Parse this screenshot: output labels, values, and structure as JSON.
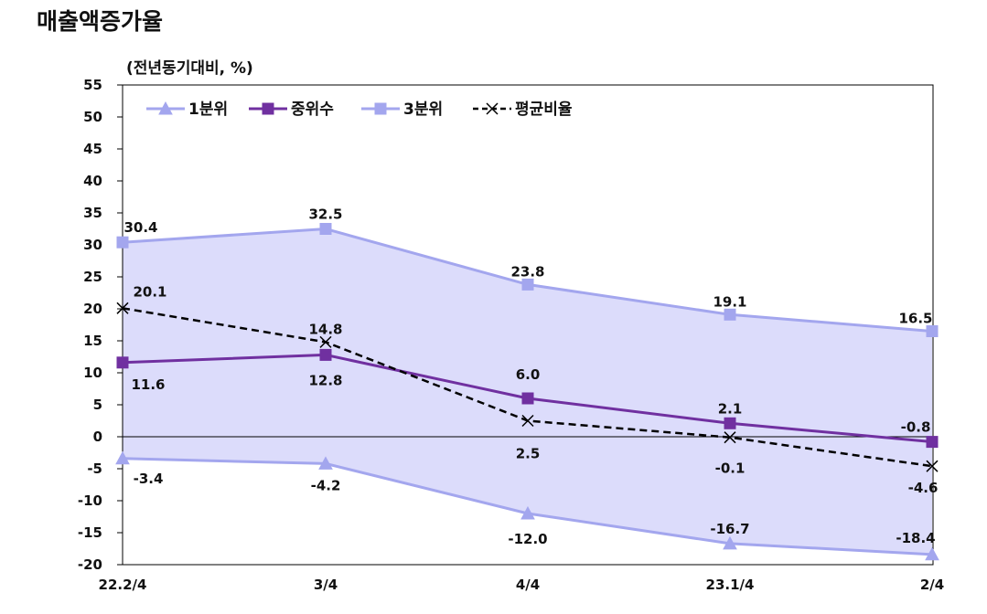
{
  "title": "매출액증가율",
  "unit_label": "(전년동기대비, %)",
  "chart_data": {
    "type": "line",
    "categories": [
      "22.2/4",
      "3/4",
      "4/4",
      "23.1/4",
      "2/4"
    ],
    "ylim": [
      -20,
      55
    ],
    "yticks": [
      55,
      50,
      45,
      40,
      35,
      30,
      25,
      20,
      15,
      10,
      5,
      0,
      -5,
      -10,
      -15,
      -20
    ],
    "grid": false,
    "legend_position": "top-left",
    "band_fill": "between 1분위 and 3분위",
    "series": [
      {
        "name": "1분위",
        "values": [
          -3.4,
          -4.2,
          -12.0,
          -16.7,
          -18.4
        ],
        "labels": [
          "-3.4",
          "-4.2",
          "-12.0",
          "-16.7",
          "-18.4"
        ],
        "color": "#a3a6ee",
        "marker": "triangle"
      },
      {
        "name": "중위수",
        "values": [
          11.6,
          12.8,
          6.0,
          2.1,
          -0.8
        ],
        "labels": [
          "11.6",
          "12.8",
          "6.0",
          "2.1",
          "-0.8"
        ],
        "color": "#7030a0",
        "marker": "square"
      },
      {
        "name": "3분위",
        "values": [
          30.4,
          32.5,
          23.8,
          19.1,
          16.5
        ],
        "labels": [
          "30.4",
          "32.5",
          "23.8",
          "19.1",
          "16.5"
        ],
        "color": "#a3a6ee",
        "marker": "square"
      },
      {
        "name": "평균비율",
        "values": [
          20.1,
          14.8,
          2.5,
          -0.1,
          -4.6
        ],
        "labels": [
          "20.1",
          "14.8",
          "2.5",
          "-0.1",
          "-4.6"
        ],
        "color": "#000000",
        "marker": "x",
        "dashed": true
      }
    ],
    "band_color": "#dcdcfb"
  }
}
